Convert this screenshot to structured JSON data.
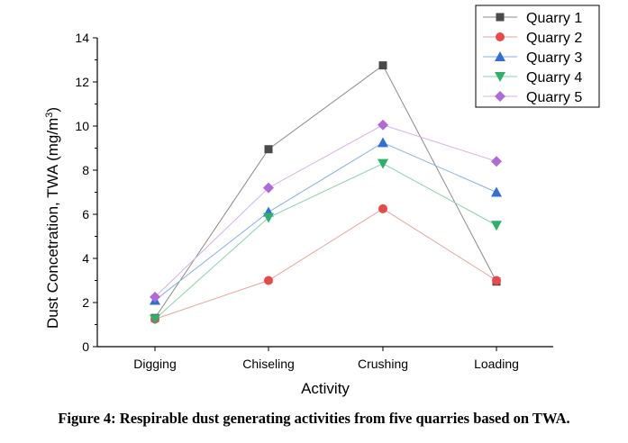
{
  "chart_data": {
    "type": "line",
    "xlabel": "Activity",
    "ylabel_main": "Dust Concetration, TWA (mg/m",
    "ylabel_sup": "3",
    "ylabel_close": ")",
    "categories": [
      "Digging",
      "Chiseling",
      "Crushing",
      "Loading"
    ],
    "ylim": [
      0,
      14
    ],
    "yticks": [
      "0",
      "2",
      "4",
      "6",
      "8",
      "10",
      "12",
      "14"
    ],
    "grid": false,
    "legend_position": "top-right",
    "series": [
      {
        "name": "Quarry 1",
        "marker": "square",
        "color": "#4a4a4a",
        "line_color": "#8a8a8a",
        "values": [
          1.3,
          8.95,
          12.75,
          2.95
        ]
      },
      {
        "name": "Quarry 2",
        "marker": "circle",
        "color": "#e84a4a",
        "line_color": "#eaa0a0",
        "values": [
          1.25,
          3.0,
          6.25,
          3.0
        ]
      },
      {
        "name": "Quarry 3",
        "marker": "triangle-up",
        "color": "#2f6fd6",
        "line_color": "#8aaee8",
        "values": [
          2.1,
          6.1,
          9.25,
          7.0
        ]
      },
      {
        "name": "Quarry 4",
        "marker": "triangle-down",
        "color": "#2db06a",
        "line_color": "#8ad0aa",
        "values": [
          1.25,
          5.85,
          8.3,
          5.5
        ]
      },
      {
        "name": "Quarry 5",
        "marker": "diamond",
        "color": "#b06ad8",
        "line_color": "#d4b0e8",
        "values": [
          2.25,
          7.2,
          10.05,
          8.4
        ]
      }
    ]
  },
  "caption": "Figure 4: Respirable dust generating activities from five quarries based on TWA."
}
